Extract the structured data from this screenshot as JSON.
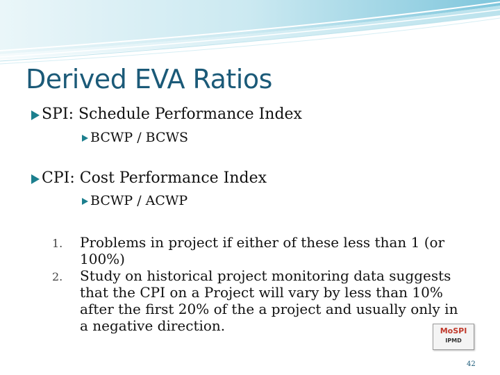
{
  "slide": {
    "title": "Derived EVA Ratios",
    "bullets": [
      {
        "text": "SPI: Schedule Performance Index",
        "sub": "BCWP / BCWS"
      },
      {
        "text": "CPI: Cost Performance Index",
        "sub": "BCWP / ACWP"
      }
    ],
    "numbered": [
      {
        "num": "1.",
        "text": "Problems in project if either of these less than 1 (or 100%)"
      },
      {
        "num": "2.",
        "text": "Study on historical project monitoring data suggests that the CPI on a Project will vary by less than 10% after the first 20% of the a project and usually only in a negative direction."
      }
    ],
    "logo": {
      "main": "MoSPI",
      "sub": "IPMD"
    },
    "page_number": "42"
  },
  "colors": {
    "title": "#1b5a78",
    "arrow": "#1c7f8e",
    "banner_light": "#dff1f6",
    "banner_mid": "#8fd0e2"
  }
}
